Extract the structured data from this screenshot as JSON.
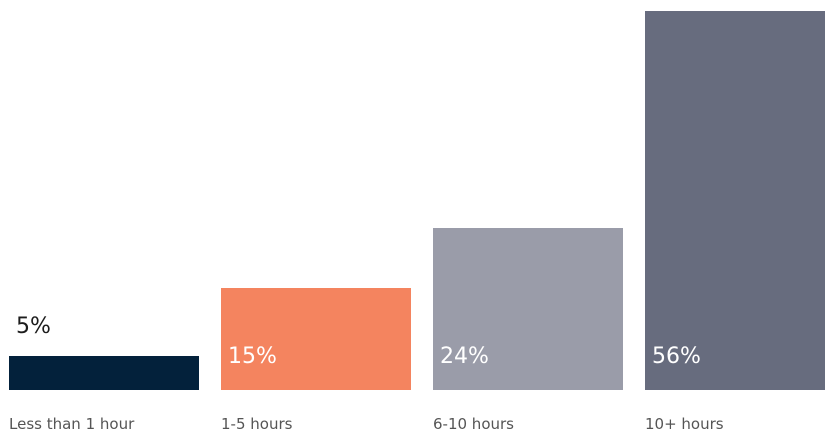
{
  "chart_data": {
    "type": "bar",
    "categories": [
      "Less than 1 hour",
      "1-5 hours",
      "6-10 hours",
      "10+ hours"
    ],
    "values": [
      5,
      15,
      24,
      56
    ],
    "value_labels": [
      "5%",
      "15%",
      "24%",
      "56%"
    ],
    "colors": [
      "#03213b",
      "#f4845f",
      "#9a9ca9",
      "#676c7e"
    ],
    "ylim": [
      0,
      56
    ],
    "grid": false,
    "legend": "none"
  }
}
